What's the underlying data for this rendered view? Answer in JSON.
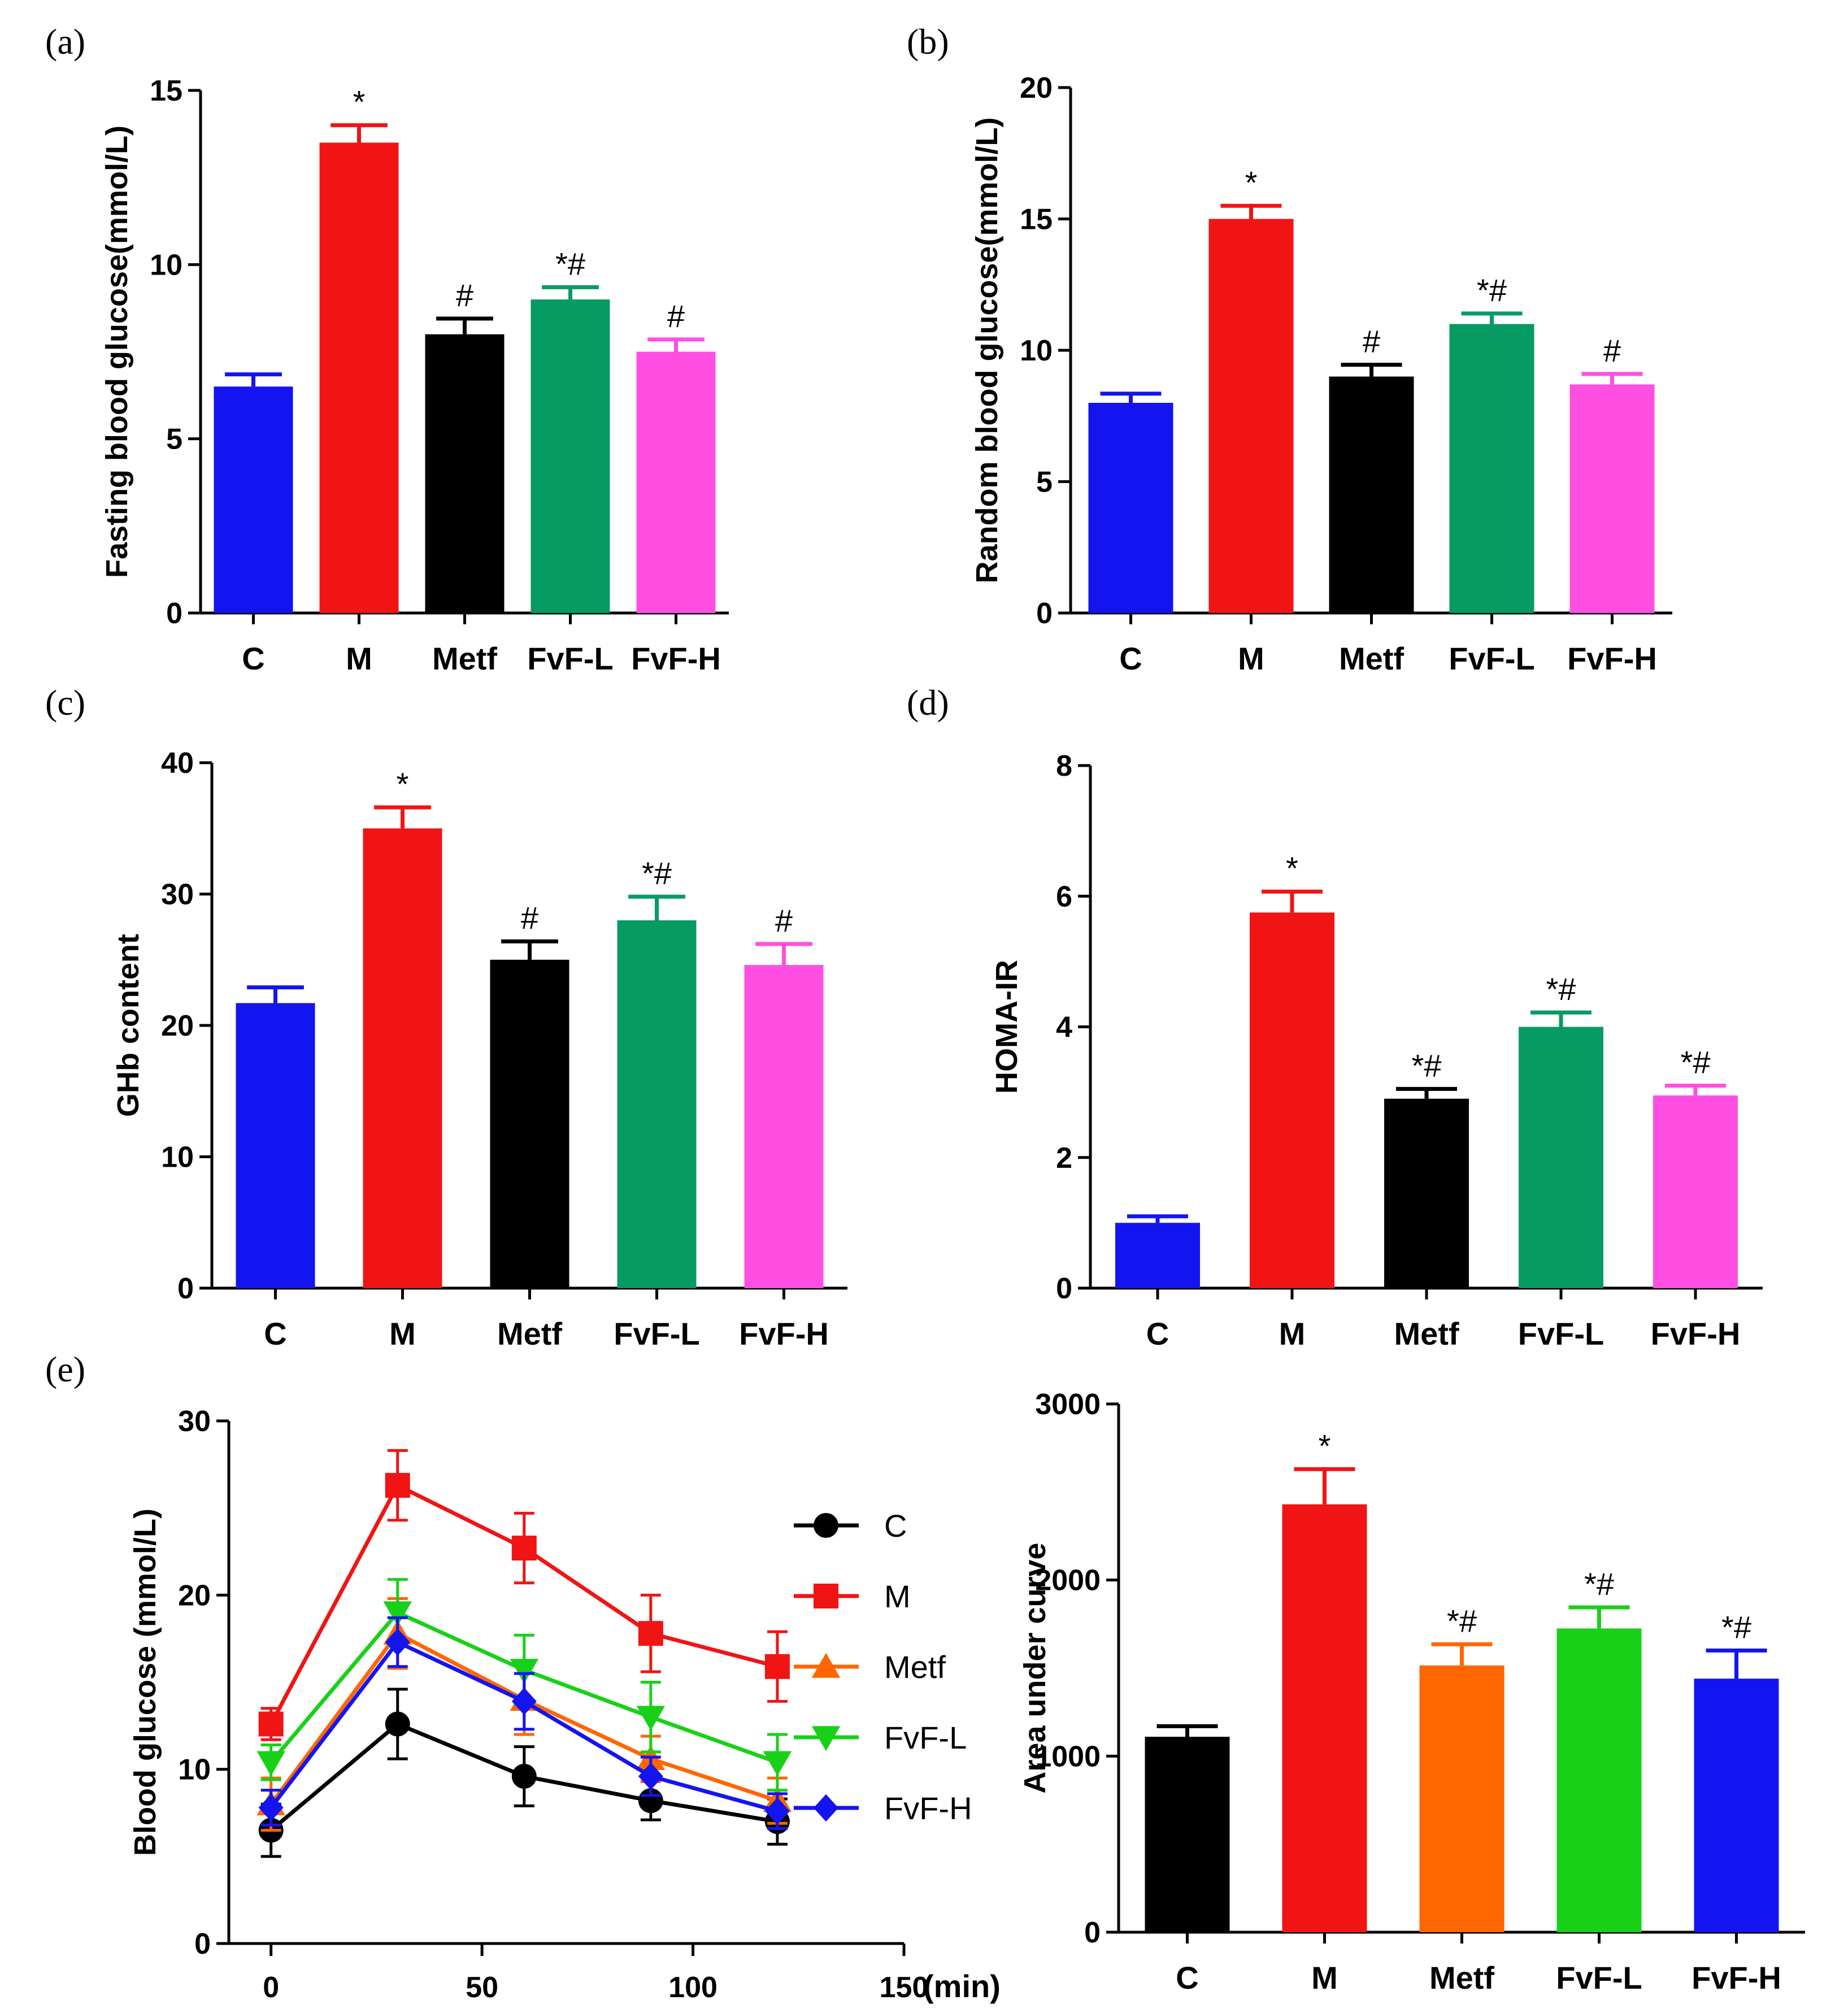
{
  "figure": {
    "panel_labels": [
      "(a)",
      "(b)",
      "(c)",
      "(d)",
      "(e)"
    ]
  },
  "chart_data": [
    {
      "id": "a",
      "type": "bar",
      "panel_label": "(a)",
      "ylabel": "Fasting blood glucose(mmol/L)",
      "xlabel": "",
      "categories": [
        "C",
        "M",
        "Metf",
        "FvF-L",
        "FvF-H"
      ],
      "values": [
        6.5,
        13.5,
        8.0,
        9.0,
        7.5
      ],
      "errors": [
        0.35,
        0.5,
        0.45,
        0.35,
        0.35
      ],
      "annotations": [
        "",
        "*",
        "#",
        "*#",
        "#"
      ],
      "colors": [
        "#1414f0",
        "#f01414",
        "#000000",
        "#069b63",
        "#ff4fe3"
      ],
      "ylim": [
        0,
        15
      ],
      "yticks": [
        0,
        5,
        10,
        15
      ],
      "grid": false
    },
    {
      "id": "b",
      "type": "bar",
      "panel_label": "(b)",
      "ylabel": "Random blood glucose(mmol/L)",
      "xlabel": "",
      "categories": [
        "C",
        "M",
        "Metf",
        "FvF-L",
        "FvF-H"
      ],
      "values": [
        8.0,
        15.0,
        9.0,
        11.0,
        8.7
      ],
      "errors": [
        0.35,
        0.5,
        0.45,
        0.4,
        0.4
      ],
      "annotations": [
        "",
        "*",
        "#",
        "*#",
        "#"
      ],
      "colors": [
        "#1414f0",
        "#f01414",
        "#000000",
        "#069b63",
        "#ff4fe3"
      ],
      "ylim": [
        0,
        20
      ],
      "yticks": [
        0,
        5,
        10,
        15,
        20
      ],
      "grid": false
    },
    {
      "id": "c",
      "type": "bar",
      "panel_label": "(c)",
      "ylabel": "GHb content",
      "xlabel": "",
      "categories": [
        "C",
        "M",
        "Metf",
        "FvF-L",
        "FvF-H"
      ],
      "values": [
        21.7,
        35.0,
        25.0,
        28.0,
        24.6
      ],
      "errors": [
        1.2,
        1.6,
        1.4,
        1.8,
        1.6
      ],
      "annotations": [
        "",
        "*",
        "#",
        "*#",
        "#"
      ],
      "colors": [
        "#1414f0",
        "#f01414",
        "#000000",
        "#069b63",
        "#ff4fe3"
      ],
      "ylim": [
        0,
        40
      ],
      "yticks": [
        0,
        10,
        20,
        30,
        40
      ],
      "grid": false
    },
    {
      "id": "d",
      "type": "bar",
      "panel_label": "(d)",
      "ylabel": "HOMA-IR",
      "xlabel": "",
      "categories": [
        "C",
        "M",
        "Metf",
        "FvF-L",
        "FvF-H"
      ],
      "values": [
        1.0,
        5.75,
        2.9,
        4.0,
        2.95
      ],
      "errors": [
        0.1,
        0.32,
        0.15,
        0.22,
        0.15
      ],
      "annotations": [
        "",
        "*",
        "*#",
        "*#",
        "*#"
      ],
      "colors": [
        "#1414f0",
        "#f01414",
        "#000000",
        "#069b63",
        "#ff4fe3"
      ],
      "ylim": [
        0,
        8
      ],
      "yticks": [
        0,
        2,
        4,
        6,
        8
      ],
      "grid": false
    },
    {
      "id": "e1",
      "type": "line",
      "panel_label": "(e)",
      "ylabel": "Blood glucose (mmol/L)",
      "xlabel": "(min)",
      "x": [
        0,
        30,
        60,
        90,
        120
      ],
      "xlim": [
        -10,
        150
      ],
      "xticks": [
        0,
        50,
        100,
        150
      ],
      "ylim": [
        0,
        30
      ],
      "yticks": [
        0,
        10,
        20,
        30
      ],
      "legend_position": "right",
      "series": [
        {
          "name": "C",
          "marker": "circle",
          "color": "#000000",
          "values": [
            6.5,
            12.6,
            9.6,
            8.2,
            7.0
          ],
          "errors": [
            1.5,
            2.0,
            1.7,
            1.1,
            1.3
          ]
        },
        {
          "name": "M",
          "marker": "square",
          "color": "#f01414",
          "values": [
            12.6,
            26.3,
            22.7,
            17.8,
            15.9
          ],
          "errors": [
            0.9,
            2.0,
            2.0,
            2.2,
            2.0
          ]
        },
        {
          "name": "Metf",
          "marker": "triangle-up",
          "color": "#ff6600",
          "values": [
            8.0,
            17.8,
            14.0,
            10.6,
            8.2
          ],
          "errors": [
            1.5,
            2.0,
            2.0,
            1.3,
            1.3
          ]
        },
        {
          "name": "FvF-L",
          "marker": "triangle-down",
          "color": "#19d019",
          "values": [
            10.4,
            19.0,
            15.7,
            13.0,
            10.4
          ],
          "errors": [
            1.0,
            1.9,
            2.0,
            2.0,
            1.6
          ]
        },
        {
          "name": "FvF-H",
          "marker": "diamond",
          "color": "#1414f0",
          "values": [
            7.8,
            17.3,
            13.9,
            9.6,
            7.6
          ],
          "errors": [
            1.0,
            1.4,
            1.6,
            1.1,
            1.0
          ]
        }
      ]
    },
    {
      "id": "e2",
      "type": "bar",
      "panel_label": "",
      "ylabel": "Area under curve",
      "xlabel": "",
      "categories": [
        "C",
        "M",
        "Metf",
        "FvF-L",
        "FvF-H"
      ],
      "values": [
        1110,
        2430,
        1515,
        1725,
        1440
      ],
      "errors": [
        60,
        200,
        120,
        120,
        160
      ],
      "annotations": [
        "",
        "*",
        "*#",
        "*#",
        "*#"
      ],
      "colors": [
        "#000000",
        "#f01414",
        "#ff6600",
        "#19d019",
        "#1414f0"
      ],
      "ylim": [
        0,
        3000
      ],
      "yticks": [
        0,
        1000,
        2000,
        3000
      ],
      "grid": false
    }
  ]
}
